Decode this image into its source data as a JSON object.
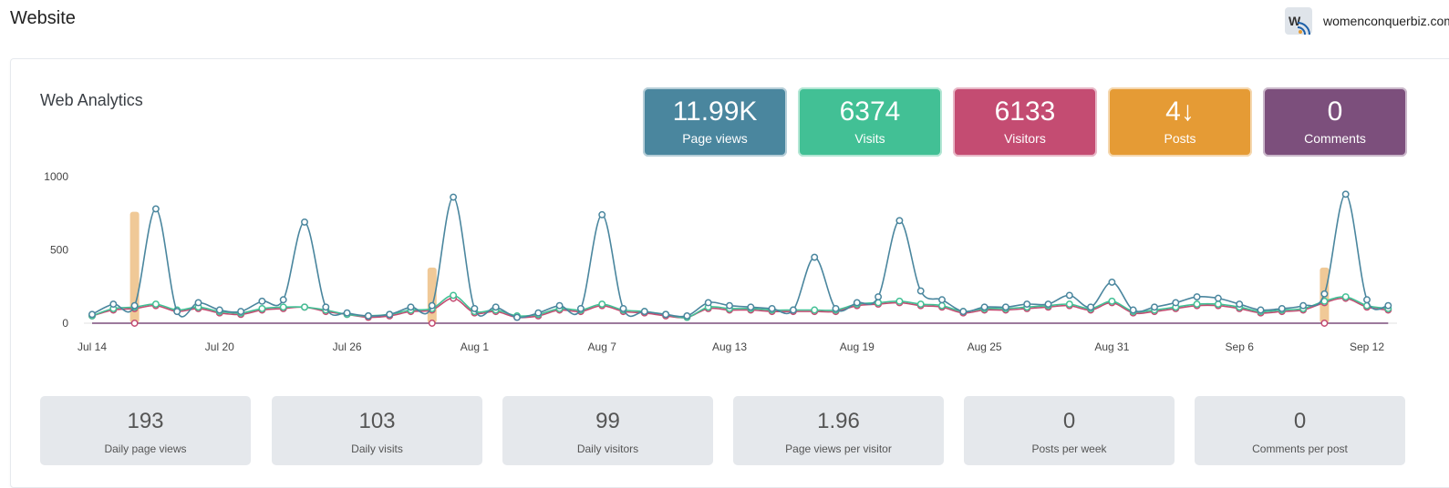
{
  "header": {
    "title": "Website",
    "site_name": "womenconquerbiz.com"
  },
  "card": {
    "title": "Web Analytics"
  },
  "stats": [
    {
      "value": "11.99K",
      "label": "Page views",
      "color": "#4a869e"
    },
    {
      "value": "6374",
      "label": "Visits",
      "color": "#42c095"
    },
    {
      "value": "6133",
      "label": "Visitors",
      "color": "#c44c72"
    },
    {
      "value": "4↓",
      "label": "Posts",
      "color": "#e59b35"
    },
    {
      "value": "0",
      "label": "Comments",
      "color": "#7c4f7c"
    }
  ],
  "metrics": [
    {
      "value": "193",
      "label": "Daily page views"
    },
    {
      "value": "103",
      "label": "Daily visits"
    },
    {
      "value": "99",
      "label": "Daily visitors"
    },
    {
      "value": "1.96",
      "label": "Page views per visitor"
    },
    {
      "value": "0",
      "label": "Posts per week"
    },
    {
      "value": "0",
      "label": "Comments per post"
    }
  ],
  "chart_data": {
    "type": "line",
    "title": "",
    "xlabel": "",
    "ylabel": "",
    "ylim": [
      0,
      1000
    ],
    "yticks": [
      0,
      500,
      1000
    ],
    "x_tick_labels": [
      "Jul 14",
      "Jul 20",
      "Jul 26",
      "Aug 1",
      "Aug 7",
      "Aug 13",
      "Aug 19",
      "Aug 25",
      "Aug 31",
      "Sep 6",
      "Sep 12"
    ],
    "x_tick_index": [
      0,
      6,
      12,
      18,
      24,
      30,
      36,
      42,
      48,
      54,
      60
    ],
    "grid": false,
    "legend": "none",
    "n_days": 62,
    "series": [
      {
        "color": "#4a869e",
        "values": [
          60,
          130,
          120,
          780,
          80,
          140,
          90,
          80,
          150,
          160,
          690,
          110,
          70,
          50,
          60,
          110,
          120,
          860,
          100,
          110,
          40,
          70,
          120,
          100,
          740,
          100,
          80,
          60,
          50,
          140,
          120,
          110,
          100,
          90,
          450,
          100,
          140,
          180,
          700,
          220,
          160,
          80,
          110,
          110,
          130,
          130,
          190,
          110,
          280,
          90,
          110,
          140,
          180,
          170,
          130,
          90,
          100,
          120,
          200,
          880,
          160,
          120
        ]
      },
      {
        "color": "#42c095",
        "values": [
          50,
          100,
          110,
          130,
          90,
          110,
          80,
          70,
          100,
          110,
          110,
          90,
          60,
          50,
          60,
          90,
          100,
          190,
          80,
          90,
          50,
          60,
          100,
          90,
          130,
          90,
          80,
          60,
          40,
          110,
          100,
          100,
          90,
          90,
          90,
          90,
          130,
          140,
          150,
          130,
          120,
          80,
          100,
          100,
          110,
          120,
          130,
          100,
          150,
          80,
          90,
          110,
          130,
          130,
          110,
          80,
          90,
          100,
          150,
          180,
          120,
          100
        ]
      },
      {
        "color": "#c44c72",
        "values": [
          50,
          90,
          100,
          120,
          80,
          100,
          70,
          60,
          90,
          100,
          110,
          80,
          60,
          40,
          50,
          80,
          90,
          170,
          70,
          80,
          40,
          50,
          90,
          80,
          120,
          80,
          70,
          50,
          40,
          100,
          90,
          90,
          80,
          80,
          80,
          80,
          120,
          130,
          140,
          120,
          110,
          70,
          90,
          90,
          100,
          110,
          120,
          90,
          140,
          70,
          80,
          100,
          120,
          120,
          100,
          70,
          80,
          90,
          140,
          170,
          110,
          90
        ]
      },
      {
        "color": "#7c4f7c",
        "values": [
          0,
          0,
          0,
          0,
          0,
          0,
          0,
          0,
          0,
          0,
          0,
          0,
          0,
          0,
          0,
          0,
          0,
          0,
          0,
          0,
          0,
          0,
          0,
          0,
          0,
          0,
          0,
          0,
          0,
          0,
          0,
          0,
          0,
          0,
          0,
          0,
          0,
          0,
          0,
          0,
          0,
          0,
          0,
          0,
          0,
          0,
          0,
          0,
          0,
          0,
          0,
          0,
          0,
          0,
          0,
          0,
          0,
          0,
          0,
          0,
          0,
          0
        ]
      }
    ],
    "post_bars": {
      "color": "#f0c997",
      "days": [
        2,
        16,
        58
      ],
      "values": [
        760,
        380,
        380
      ]
    },
    "post_markers": {
      "color": "#c44c72",
      "days": [
        2,
        16,
        58
      ]
    }
  }
}
